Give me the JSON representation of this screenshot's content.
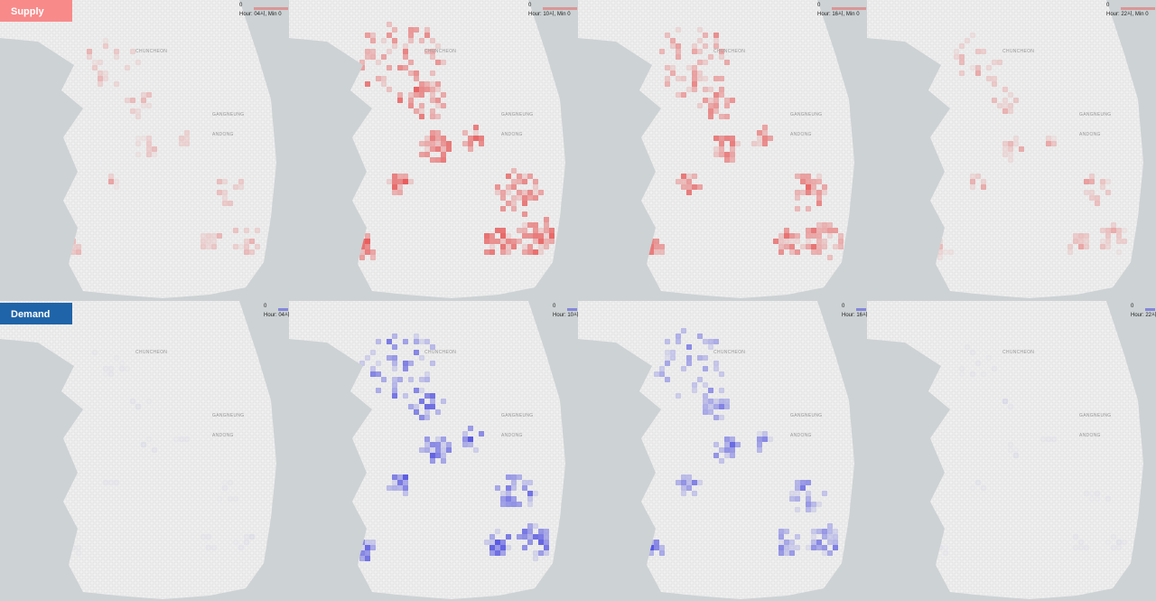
{
  "panels": {
    "supply": {
      "label": "Supply"
    },
    "demand": {
      "label": "Demand"
    }
  },
  "legend": {
    "min": "0",
    "hours": [
      "Hour: 04시, Min 0",
      "Hour: 10시, Min 0",
      "Hour: 16시, Min 0",
      "Hour: 22시, Min 0"
    ]
  },
  "map_labels": [
    "CHUNCHEON",
    "GANGNEUNG",
    "ANDONG"
  ]
}
